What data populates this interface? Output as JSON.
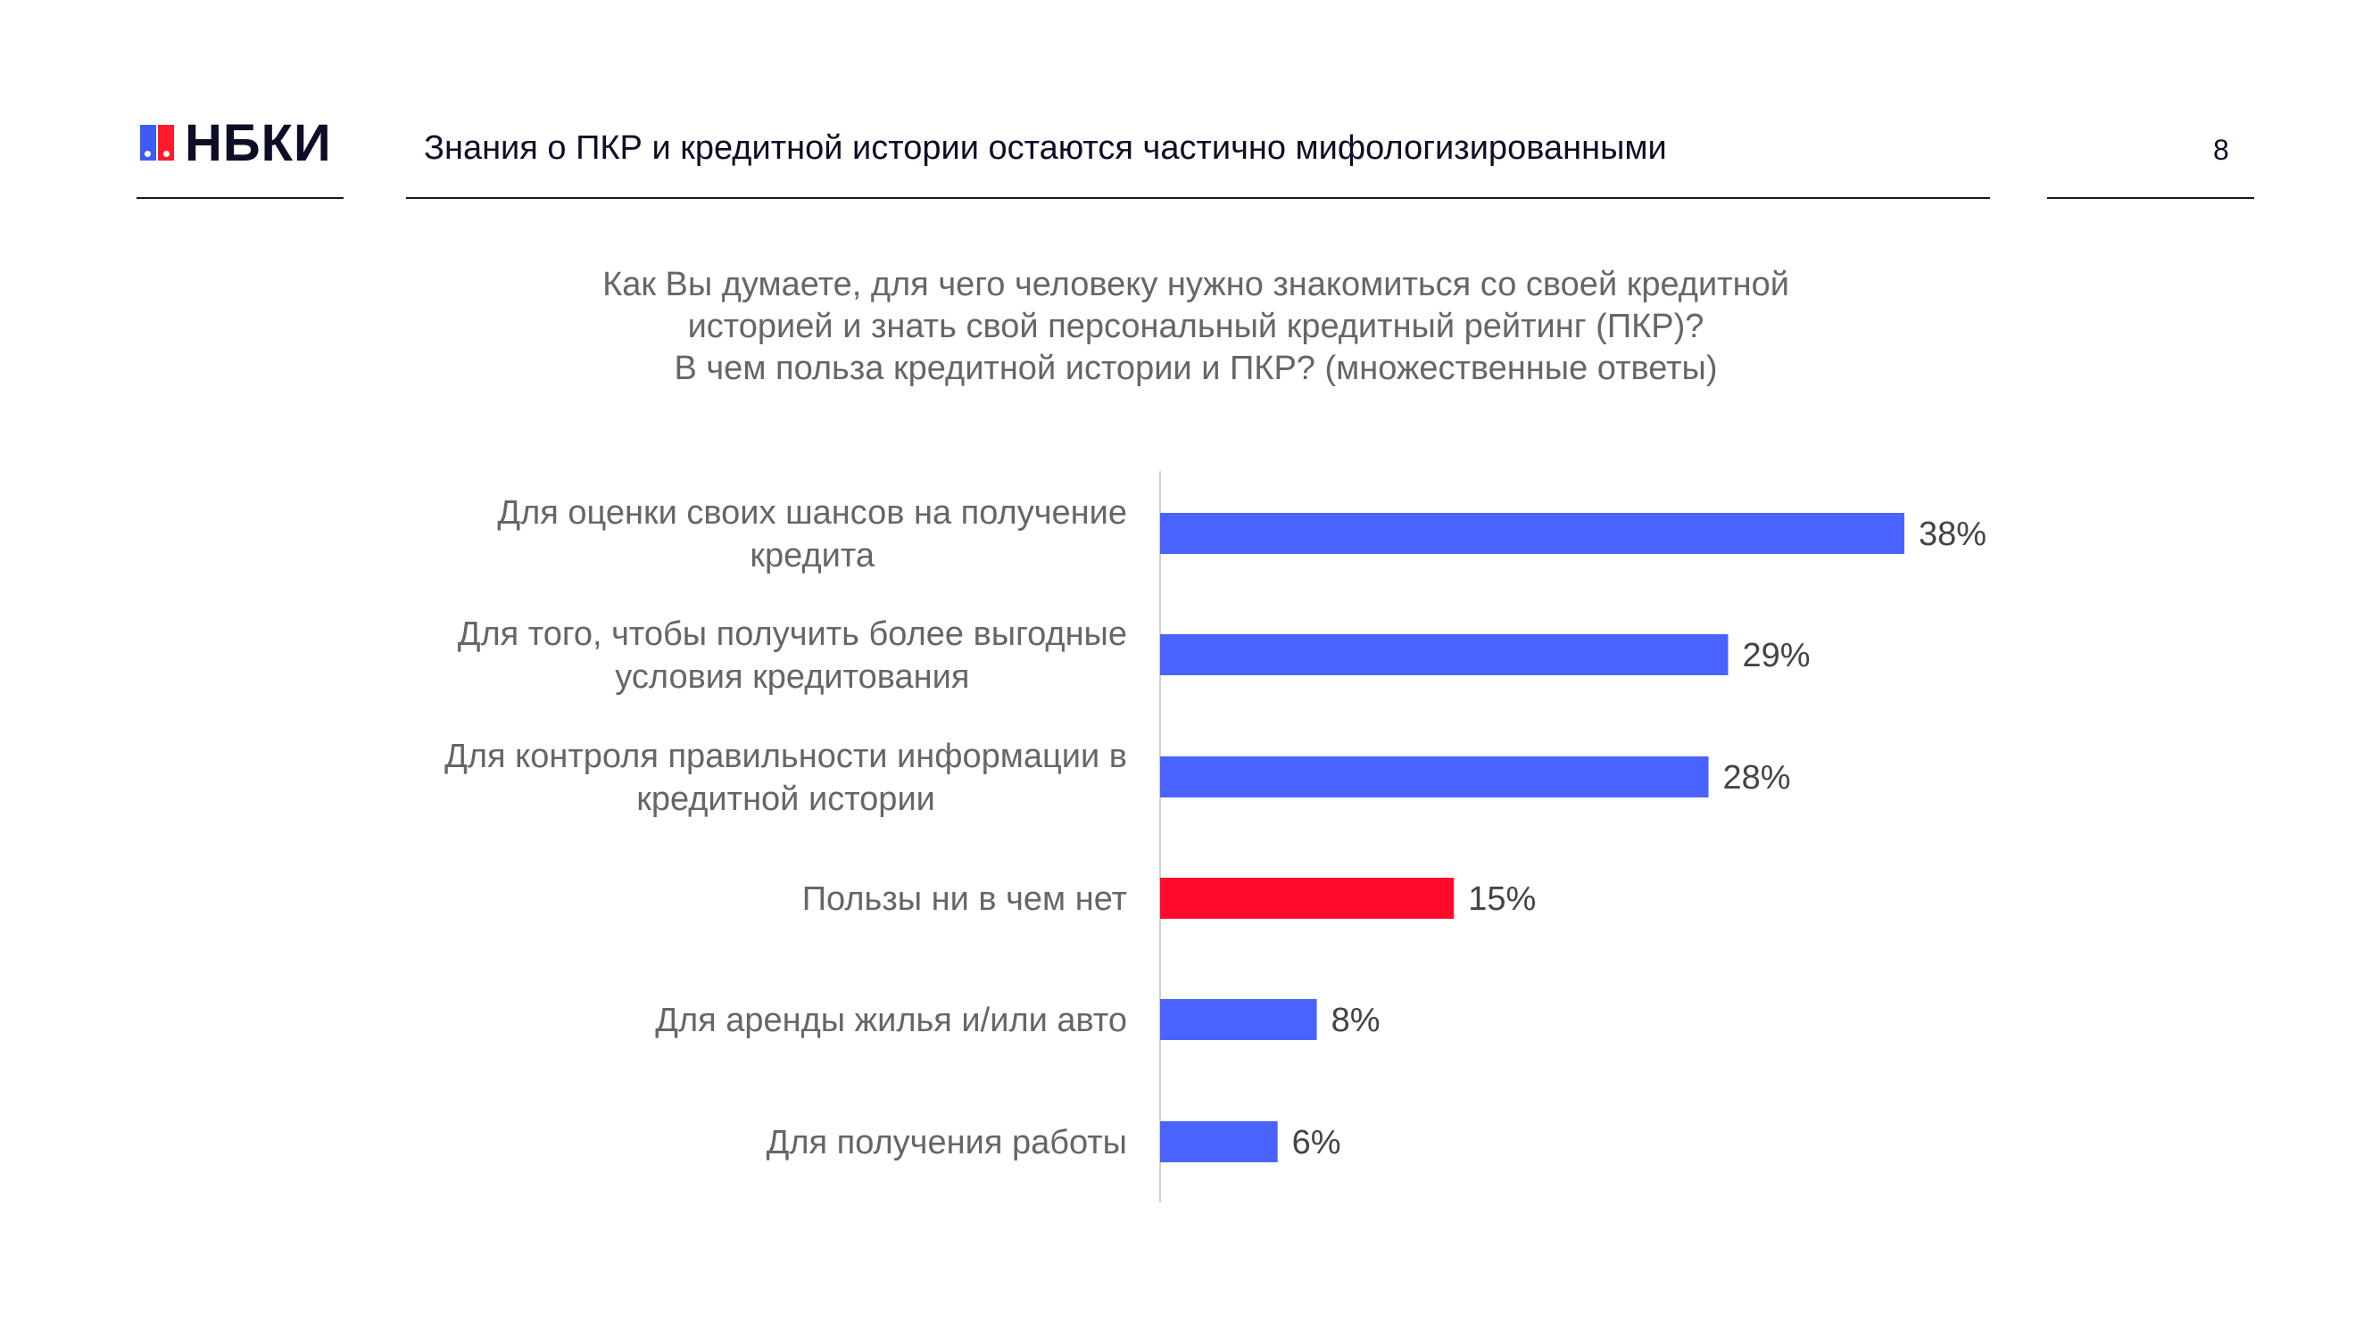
{
  "header": {
    "logo_text": "НБКИ",
    "title": "Знания о ПКР и кредитной истории остаются частично мифологизированными",
    "page_number": "8"
  },
  "question_lines": [
    "Как Вы думаете, для чего человеку нужно знакомиться со своей кредитной",
    "историей и знать свой персональный кредитный рейтинг (ПКР)?",
    "В чем польза кредитной истории и ПКР? (множественные ответы)"
  ],
  "colors": {
    "bar_default": "#4a63ff",
    "bar_highlight": "#ff0a2c"
  },
  "chart_data": {
    "type": "bar",
    "orientation": "horizontal",
    "categories": [
      [
        "Для оценки своих шансов на получение",
        "кредита"
      ],
      [
        "Для того, чтобы получить более выгодные",
        "условия кредитования"
      ],
      [
        "Для контроля правильности информации в",
        "кредитной истории"
      ],
      [
        "Пользы ни в чем нет"
      ],
      [
        "Для аренды жилья и/или авто"
      ],
      [
        "Для получения работы"
      ]
    ],
    "values": [
      38,
      29,
      28,
      15,
      8,
      6
    ],
    "value_labels": [
      "38%",
      "29%",
      "28%",
      "15%",
      "8%",
      "6%"
    ],
    "highlight_index": 3,
    "xlim": [
      0,
      38
    ],
    "grid": false,
    "legend": "none"
  }
}
